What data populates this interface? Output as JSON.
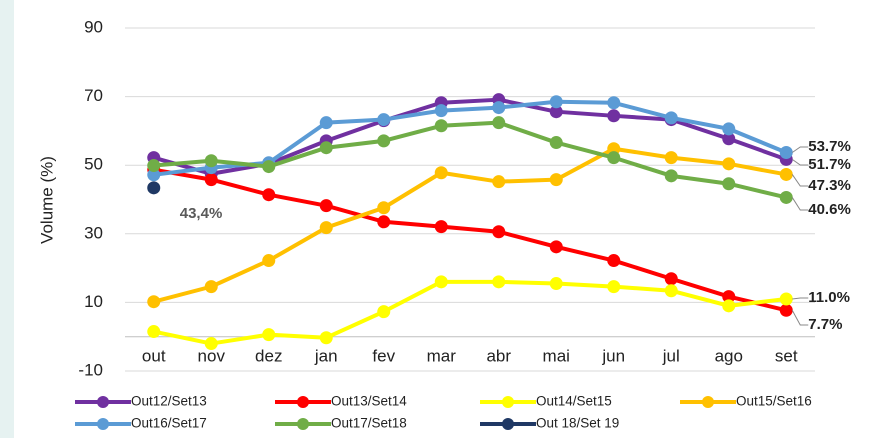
{
  "chart_data": {
    "type": "line",
    "y_label": "Volume  (%)",
    "categories": [
      "out",
      "nov",
      "dez",
      "jan",
      "fev",
      "mar",
      "abr",
      "mai",
      "jun",
      "jul",
      "ago",
      "set"
    ],
    "ylim": [
      -10,
      90
    ],
    "yticks": [
      -10,
      10,
      30,
      50,
      70,
      90
    ],
    "grid": true,
    "series": [
      {
        "name": "Out12/Set13",
        "color": "#7030a0",
        "values": [
          52.2,
          47.5,
          50.4,
          57.1,
          63.0,
          68.2,
          69.1,
          65.6,
          64.4,
          63.3,
          57.7,
          51.7
        ],
        "value_labels": [
          null,
          null,
          null,
          null,
          null,
          null,
          null,
          null,
          null,
          null,
          null,
          "51.7%"
        ]
      },
      {
        "name": "Out13/Set14",
        "color": "#ff0000",
        "values": [
          48.7,
          45.8,
          41.4,
          38.2,
          33.5,
          32.1,
          30.6,
          26.2,
          22.2,
          16.9,
          11.7,
          7.7
        ],
        "value_labels": [
          null,
          null,
          null,
          null,
          null,
          null,
          null,
          null,
          null,
          null,
          null,
          "7.7%"
        ]
      },
      {
        "name": "Out14/Set15",
        "color": "#ffff00",
        "values": [
          1.5,
          -2.0,
          0.6,
          -0.3,
          7.3,
          16.0,
          16.0,
          15.5,
          14.6,
          13.4,
          9.0,
          11.0
        ],
        "value_labels": [
          null,
          null,
          null,
          null,
          null,
          null,
          null,
          null,
          null,
          null,
          null,
          "11.0%"
        ]
      },
      {
        "name": "Out15/Set16",
        "color": "#ffc000",
        "values": [
          10.2,
          14.6,
          22.2,
          31.8,
          37.6,
          47.8,
          45.2,
          45.8,
          54.8,
          52.2,
          50.4,
          47.3
        ],
        "value_labels": [
          null,
          null,
          null,
          null,
          null,
          null,
          null,
          null,
          null,
          null,
          null,
          "47.3%"
        ]
      },
      {
        "name": "Out16/Set17",
        "color": "#5b9bd5",
        "values": [
          47.2,
          49.3,
          50.7,
          62.4,
          63.3,
          65.9,
          66.8,
          68.5,
          68.2,
          63.8,
          60.6,
          53.7
        ],
        "value_labels": [
          null,
          null,
          null,
          null,
          null,
          null,
          null,
          null,
          null,
          null,
          null,
          "53.7%"
        ]
      },
      {
        "name": "Out17/Set18",
        "color": "#70ad47",
        "values": [
          49.9,
          51.3,
          49.6,
          55.1,
          57.1,
          61.5,
          62.4,
          56.6,
          52.2,
          46.9,
          44.6,
          40.6
        ],
        "value_labels": [
          null,
          null,
          null,
          null,
          null,
          null,
          null,
          null,
          null,
          null,
          null,
          "40.6%"
        ]
      },
      {
        "name": "Out 18/Set 19",
        "color": "#1f3864",
        "values": [
          43.4,
          null,
          null,
          null,
          null,
          null,
          null,
          null,
          null,
          null,
          null,
          null
        ],
        "value_labels": [
          "43,4%",
          null,
          null,
          null,
          null,
          null,
          null,
          null,
          null,
          null,
          null,
          null
        ]
      }
    ]
  }
}
